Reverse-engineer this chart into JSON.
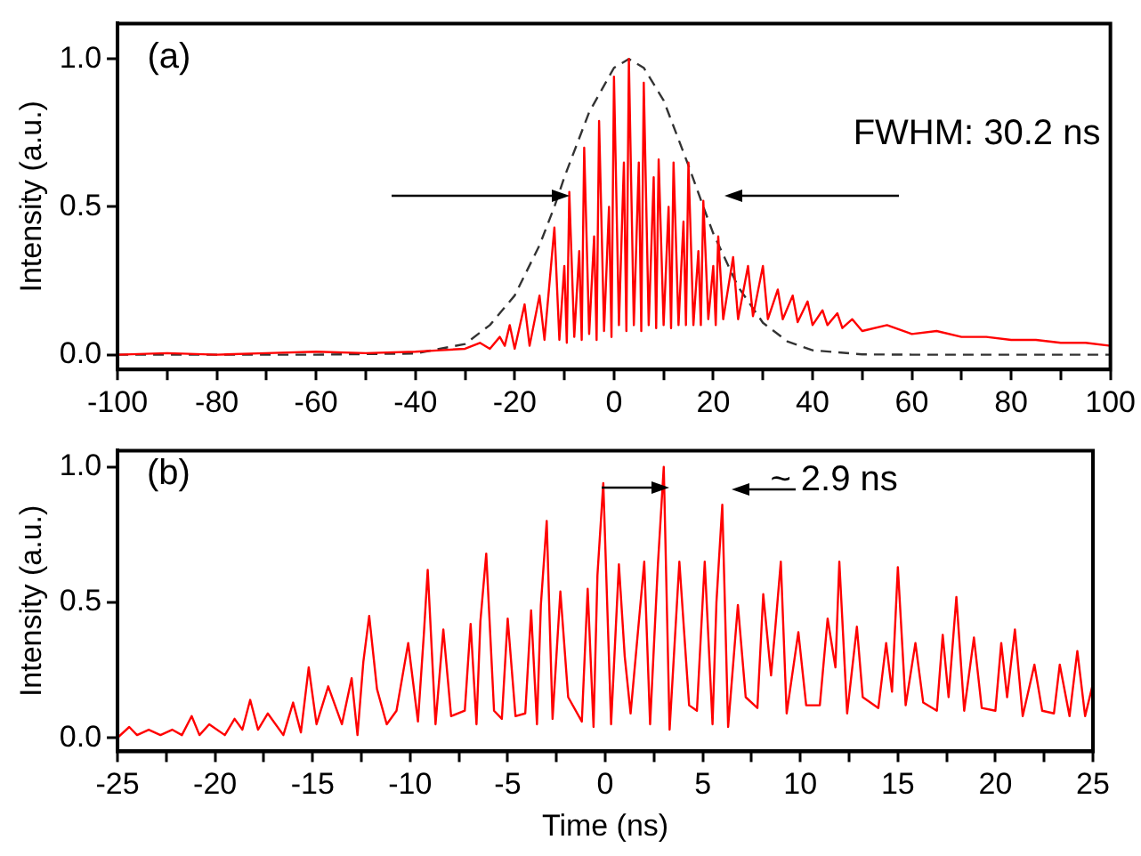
{
  "chart_data": [
    {
      "type": "line",
      "ylabel": "Intensity (a.u.)",
      "annotations": [
        "(a)",
        "FWHM: 30.2 ns"
      ],
      "xlim": [
        -100,
        100
      ],
      "xticks": [
        -100,
        {
          "value": -90,
          "label": null
        },
        -80,
        {
          "value": -70,
          "label": null
        },
        -60,
        {
          "value": -50,
          "label": null
        },
        -40,
        {
          "value": -30,
          "label": null
        },
        -20,
        {
          "value": -10,
          "label": null
        },
        0,
        {
          "value": 10,
          "label": null
        },
        20,
        {
          "value": 30,
          "label": null
        },
        40,
        {
          "value": 50,
          "label": null
        },
        60,
        {
          "value": 70,
          "label": null
        },
        80,
        {
          "value": 90,
          "label": null
        },
        100
      ],
      "ylim": [
        -0.05,
        1.12
      ],
      "yticks": [
        {
          "value": 0,
          "label": "0.0"
        },
        {
          "value": 0.5,
          "label": "0.5"
        },
        {
          "value": 1,
          "label": "1.0"
        }
      ],
      "grid": false,
      "legend": false,
      "marker": "none",
      "series": [
        {
          "color": "#ff0000",
          "line_style": "solid",
          "x": [
            -100,
            -90,
            -80,
            -70,
            -60,
            -50,
            -40,
            -35,
            -30,
            -27,
            -25,
            -23,
            -22,
            -21,
            -20,
            -18,
            -17,
            -15,
            -14,
            -12,
            -11,
            -10,
            -9.5,
            -9,
            -8,
            -7,
            -6.5,
            -6,
            -5,
            -4,
            -3.5,
            -3,
            -2,
            -1,
            -0.5,
            0,
            1,
            2,
            2.5,
            3,
            4,
            5,
            5.5,
            6,
            7,
            8,
            8.5,
            9,
            10,
            11,
            11.5,
            12,
            13,
            14,
            14.5,
            15,
            16,
            17,
            17.5,
            18,
            19,
            20,
            20.5,
            21,
            22,
            24,
            25,
            27,
            28,
            30,
            31,
            33,
            34,
            36,
            37,
            39,
            40,
            42,
            43,
            45,
            46,
            48,
            50,
            55,
            60,
            65,
            70,
            75,
            80,
            85,
            90,
            95,
            100
          ],
          "values": [
            0,
            0.005,
            0,
            0.005,
            0.01,
            0.005,
            0.01,
            0.015,
            0.02,
            0.04,
            0.02,
            0.06,
            0.03,
            0.1,
            0.02,
            0.17,
            0.03,
            0.2,
            0.05,
            0.43,
            0.05,
            0.3,
            0.04,
            0.55,
            0.06,
            0.35,
            0.05,
            0.7,
            0.07,
            0.4,
            0.05,
            0.79,
            0.08,
            0.5,
            0.06,
            0.94,
            0.1,
            0.65,
            0.08,
            1.0,
            0.1,
            0.65,
            0.08,
            0.92,
            0.1,
            0.6,
            0.09,
            0.66,
            0.1,
            0.5,
            0.09,
            0.65,
            0.1,
            0.45,
            0.1,
            0.65,
            0.1,
            0.35,
            0.1,
            0.52,
            0.12,
            0.3,
            0.1,
            0.4,
            0.12,
            0.33,
            0.12,
            0.3,
            0.13,
            0.3,
            0.12,
            0.22,
            0.12,
            0.2,
            0.11,
            0.18,
            0.1,
            0.15,
            0.1,
            0.14,
            0.09,
            0.12,
            0.08,
            0.1,
            0.07,
            0.08,
            0.06,
            0.06,
            0.05,
            0.05,
            0.04,
            0.04,
            0.03
          ]
        },
        {
          "color": "#333333",
          "line_style": "dashed",
          "x": [
            -100,
            -60,
            -40,
            -30,
            -25,
            -20,
            -15,
            -12,
            -10,
            -5,
            0,
            3,
            6,
            10,
            15,
            18,
            20,
            25,
            30,
            35,
            40,
            50,
            60,
            100
          ],
          "values": [
            0,
            0,
            0.004,
            0.036,
            0.1,
            0.2,
            0.37,
            0.5,
            0.6,
            0.82,
            0.97,
            1.0,
            0.97,
            0.86,
            0.64,
            0.5,
            0.41,
            0.23,
            0.108,
            0.044,
            0.015,
            0.001,
            0,
            0
          ]
        }
      ]
    },
    {
      "type": "line",
      "ylabel": "Intensity (a.u.)",
      "xlabel": "Time (ns)",
      "annotations": [
        "(b)",
        "~ 2.9 ns"
      ],
      "xlim": [
        -25,
        25
      ],
      "xticks": [
        -25,
        {
          "value": -22.5,
          "label": null
        },
        -20,
        {
          "value": -17.5,
          "label": null
        },
        -15,
        {
          "value": -12.5,
          "label": null
        },
        -10,
        {
          "value": -7.5,
          "label": null
        },
        -5,
        {
          "value": -2.5,
          "label": null
        },
        0,
        {
          "value": 2.5,
          "label": null
        },
        5,
        {
          "value": 7.5,
          "label": null
        },
        10,
        {
          "value": 12.5,
          "label": null
        },
        15,
        {
          "value": 17.5,
          "label": null
        },
        20,
        {
          "value": 22.5,
          "label": null
        },
        25
      ],
      "ylim": [
        -0.05,
        1.06
      ],
      "yticks": [
        {
          "value": 0,
          "label": "0.0"
        },
        {
          "value": 0.5,
          "label": "0.5"
        },
        {
          "value": 1,
          "label": "1.0"
        }
      ],
      "grid": false,
      "legend": false,
      "marker": "none",
      "series": [
        {
          "color": "#ff0000",
          "line_style": "solid",
          "x": [
            -25,
            -24.4,
            -24,
            -23.4,
            -22.8,
            -22.2,
            -21.7,
            -21.2,
            -20.8,
            -20.3,
            -19.5,
            -19,
            -18.6,
            -18.2,
            -17.8,
            -17.3,
            -16.5,
            -16,
            -15.6,
            -15.2,
            -14.8,
            -14.2,
            -13.5,
            -13,
            -12.7,
            -12.4,
            -12.1,
            -11.7,
            -11.2,
            -10.7,
            -10.1,
            -9.6,
            -9.3,
            -9.1,
            -8.7,
            -8.3,
            -7.9,
            -7.2,
            -6.9,
            -6.6,
            -6.4,
            -6.1,
            -5.7,
            -5.3,
            -5,
            -4.6,
            -4.1,
            -3.8,
            -3.5,
            -3.3,
            -3,
            -2.7,
            -2.3,
            -1.9,
            -1.2,
            -0.9,
            -0.6,
            -0.4,
            -0.1,
            0.3,
            0.7,
            1,
            1.3,
            2,
            2.3,
            2.7,
            3,
            3.3,
            3.8,
            4.3,
            4.7,
            5.1,
            5.5,
            5.7,
            6,
            6.3,
            6.8,
            7.2,
            7.8,
            8.1,
            8.5,
            8.7,
            9,
            9.3,
            9.9,
            10.3,
            11,
            11.4,
            11.8,
            12,
            12.4,
            12.9,
            13.2,
            14,
            14.4,
            14.7,
            15,
            15.4,
            15.9,
            16.3,
            17,
            17.3,
            17.6,
            18,
            18.4,
            18.9,
            19.3,
            20,
            20.3,
            20.6,
            21,
            21.4,
            22,
            22.4,
            23,
            23.3,
            23.8,
            24.2,
            24.6,
            25
          ],
          "values": [
            0,
            0.04,
            0.01,
            0.03,
            0.01,
            0.03,
            0.01,
            0.08,
            0.01,
            0.05,
            0.01,
            0.07,
            0.03,
            0.14,
            0.03,
            0.09,
            0.01,
            0.13,
            0.02,
            0.26,
            0.05,
            0.19,
            0.05,
            0.22,
            0.01,
            0.28,
            0.45,
            0.18,
            0.05,
            0.1,
            0.35,
            0.06,
            0.38,
            0.62,
            0.05,
            0.4,
            0.08,
            0.1,
            0.42,
            0.05,
            0.43,
            0.68,
            0.1,
            0.07,
            0.44,
            0.08,
            0.09,
            0.47,
            0.05,
            0.49,
            0.8,
            0.07,
            0.54,
            0.15,
            0.06,
            0.55,
            0.04,
            0.6,
            0.94,
            0.05,
            0.64,
            0.3,
            0.09,
            0.65,
            0.05,
            0.64,
            1.0,
            0.03,
            0.65,
            0.12,
            0.1,
            0.65,
            0.05,
            0.5,
            0.86,
            0.04,
            0.49,
            0.15,
            0.11,
            0.53,
            0.23,
            0.39,
            0.65,
            0.09,
            0.39,
            0.12,
            0.12,
            0.44,
            0.26,
            0.65,
            0.09,
            0.41,
            0.15,
            0.11,
            0.35,
            0.17,
            0.63,
            0.12,
            0.35,
            0.13,
            0.1,
            0.38,
            0.15,
            0.52,
            0.1,
            0.37,
            0.11,
            0.1,
            0.35,
            0.15,
            0.4,
            0.08,
            0.27,
            0.1,
            0.09,
            0.27,
            0.08,
            0.32,
            0.08,
            0.2
          ]
        }
      ]
    }
  ]
}
